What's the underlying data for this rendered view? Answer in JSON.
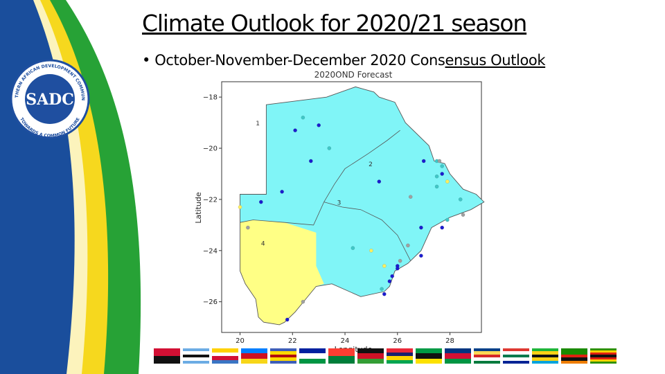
{
  "slide": {
    "title": "Climate Outlook for 2020/21 season",
    "bullet_prefix": "• October-November-December 2020 Cons",
    "bullet_underlined": "ensus Outlook"
  },
  "logo": {
    "text_top": "SOUTHERN AFRICAN DEVELOPMENT COMMUNITY",
    "text_bottom": "TOWARDS A COMMON FUTURE",
    "center": "SADC",
    "color": "#1f4fa0"
  },
  "map": {
    "title": "2020OND Forecast",
    "xlabel": "Longitude",
    "ylabel": "Latitude",
    "xlim": [
      19.3,
      29.2
    ],
    "ylim": [
      -27.2,
      -17.4
    ],
    "xticks": [
      "20",
      "22",
      "24",
      "26",
      "28"
    ],
    "yticks": [
      "−18",
      "−20",
      "−22",
      "−24",
      "−26"
    ],
    "colors": {
      "above": "#80f5f7",
      "below": "#ffff85",
      "border": "#555555"
    },
    "zones": [
      {
        "label": "1",
        "lon": 20.6,
        "lat": -19.1
      },
      {
        "label": "2",
        "lon": 24.9,
        "lat": -20.7
      },
      {
        "label": "3",
        "lon": 23.7,
        "lat": -22.2
      },
      {
        "label": "4",
        "lon": 20.8,
        "lat": -23.8
      }
    ],
    "outline": [
      [
        21.0,
        -18.3
      ],
      [
        23.3,
        -18.0
      ],
      [
        24.4,
        -17.6
      ],
      [
        25.1,
        -17.8
      ],
      [
        25.3,
        -18.0
      ],
      [
        25.9,
        -18.2
      ],
      [
        26.3,
        -19.0
      ],
      [
        27.2,
        -19.9
      ],
      [
        27.4,
        -20.5
      ],
      [
        27.8,
        -20.6
      ],
      [
        28.0,
        -21.0
      ],
      [
        28.5,
        -21.6
      ],
      [
        29.0,
        -21.8
      ],
      [
        29.3,
        -22.1
      ],
      [
        28.8,
        -22.4
      ],
      [
        28.0,
        -22.7
      ],
      [
        27.3,
        -23.1
      ],
      [
        26.9,
        -24.0
      ],
      [
        26.4,
        -24.5
      ],
      [
        25.9,
        -24.8
      ],
      [
        25.7,
        -25.4
      ],
      [
        25.5,
        -25.6
      ],
      [
        24.6,
        -25.8
      ],
      [
        23.5,
        -25.3
      ],
      [
        22.9,
        -25.4
      ],
      [
        22.5,
        -25.9
      ],
      [
        22.1,
        -26.4
      ],
      [
        21.7,
        -26.8
      ],
      [
        21.5,
        -26.9
      ],
      [
        20.9,
        -26.8
      ],
      [
        20.7,
        -26.6
      ],
      [
        20.6,
        -25.9
      ],
      [
        20.2,
        -25.3
      ],
      [
        20.0,
        -24.8
      ],
      [
        20.0,
        -21.8
      ],
      [
        21.0,
        -21.8
      ],
      [
        21.0,
        -18.3
      ]
    ],
    "yellow_region": [
      [
        20.0,
        -22.9
      ],
      [
        20.5,
        -22.8
      ],
      [
        21.7,
        -22.9
      ],
      [
        22.9,
        -23.3
      ],
      [
        22.9,
        -24.6
      ],
      [
        23.2,
        -25.3
      ],
      [
        22.9,
        -25.4
      ],
      [
        22.5,
        -25.9
      ],
      [
        22.1,
        -26.4
      ],
      [
        21.7,
        -26.8
      ],
      [
        21.5,
        -26.9
      ],
      [
        20.9,
        -26.8
      ],
      [
        20.7,
        -26.6
      ],
      [
        20.6,
        -25.9
      ],
      [
        20.2,
        -25.3
      ],
      [
        20.0,
        -24.8
      ]
    ],
    "boundaries": [
      [
        [
          20.0,
          -22.9
        ],
        [
          20.5,
          -22.8
        ],
        [
          21.7,
          -22.9
        ],
        [
          22.8,
          -23.0
        ],
        [
          23.2,
          -22.1
        ],
        [
          23.6,
          -21.4
        ],
        [
          24.0,
          -20.8
        ],
        [
          24.9,
          -20.2
        ],
        [
          25.6,
          -19.7
        ],
        [
          26.1,
          -19.3
        ]
      ],
      [
        [
          23.2,
          -22.1
        ],
        [
          23.9,
          -22.3
        ],
        [
          24.6,
          -22.4
        ],
        [
          25.4,
          -22.8
        ],
        [
          26.0,
          -23.4
        ],
        [
          26.5,
          -24.4
        ]
      ]
    ],
    "stations": [
      {
        "lon": 22.4,
        "lat": -18.8,
        "c": "#41c7c7"
      },
      {
        "lon": 22.1,
        "lat": -19.3,
        "c": "#1c1ccf"
      },
      {
        "lon": 23.0,
        "lat": -19.1,
        "c": "#1c1ccf"
      },
      {
        "lon": 23.4,
        "lat": -20.0,
        "c": "#41c7c7"
      },
      {
        "lon": 22.7,
        "lat": -20.5,
        "c": "#1c1ccf"
      },
      {
        "lon": 21.6,
        "lat": -21.7,
        "c": "#1c1ccf"
      },
      {
        "lon": 20.8,
        "lat": -22.1,
        "c": "#1c1ccf"
      },
      {
        "lon": 20.0,
        "lat": -22.3,
        "c": "#ffef60"
      },
      {
        "lon": 20.3,
        "lat": -23.1,
        "c": "#a0a0a0"
      },
      {
        "lon": 25.3,
        "lat": -21.3,
        "c": "#1c1ccf"
      },
      {
        "lon": 27.0,
        "lat": -20.5,
        "c": "#1c1ccf"
      },
      {
        "lon": 27.5,
        "lat": -20.5,
        "c": "#41c7c7"
      },
      {
        "lon": 27.6,
        "lat": -20.5,
        "c": "#a0a0a0"
      },
      {
        "lon": 27.7,
        "lat": -20.7,
        "c": "#41c7c7"
      },
      {
        "lon": 27.7,
        "lat": -21.0,
        "c": "#1c1ccf"
      },
      {
        "lon": 27.5,
        "lat": -21.1,
        "c": "#41c7c7"
      },
      {
        "lon": 27.9,
        "lat": -21.3,
        "c": "#ffef60"
      },
      {
        "lon": 27.5,
        "lat": -21.5,
        "c": "#41c7c7"
      },
      {
        "lon": 26.5,
        "lat": -21.9,
        "c": "#a0a0a0"
      },
      {
        "lon": 28.4,
        "lat": -22.0,
        "c": "#41c7c7"
      },
      {
        "lon": 28.5,
        "lat": -22.6,
        "c": "#a0a0a0"
      },
      {
        "lon": 27.9,
        "lat": -22.8,
        "c": "#41c7c7"
      },
      {
        "lon": 27.7,
        "lat": -23.1,
        "c": "#1c1ccf"
      },
      {
        "lon": 26.9,
        "lat": -23.1,
        "c": "#1c1ccf"
      },
      {
        "lon": 24.3,
        "lat": -23.9,
        "c": "#41c7c7"
      },
      {
        "lon": 25.0,
        "lat": -24.0,
        "c": "#ffef60"
      },
      {
        "lon": 26.4,
        "lat": -23.8,
        "c": "#a0a0a0"
      },
      {
        "lon": 26.9,
        "lat": -24.2,
        "c": "#1c1ccf"
      },
      {
        "lon": 26.1,
        "lat": -24.4,
        "c": "#a0a0a0"
      },
      {
        "lon": 25.5,
        "lat": -24.6,
        "c": "#ffef60"
      },
      {
        "lon": 26.0,
        "lat": -24.6,
        "c": "#1c1ccf"
      },
      {
        "lon": 26.0,
        "lat": -24.7,
        "c": "#1c1ccf"
      },
      {
        "lon": 25.8,
        "lat": -25.0,
        "c": "#1c1ccf"
      },
      {
        "lon": 25.7,
        "lat": -25.2,
        "c": "#1c1ccf"
      },
      {
        "lon": 25.4,
        "lat": -25.5,
        "c": "#41c7c7"
      },
      {
        "lon": 25.5,
        "lat": -25.7,
        "c": "#1c1ccf"
      },
      {
        "lon": 22.4,
        "lat": -26.0,
        "c": "#a0a0a0"
      },
      {
        "lon": 21.8,
        "lat": -26.7,
        "c": "#1c1ccf"
      }
    ]
  },
  "flags": [
    {
      "name": "angola-flag",
      "colors": [
        "#d21034",
        "#111111"
      ]
    },
    {
      "name": "botswana-flag",
      "colors": [
        "#6cace4",
        "#ffffff",
        "#111111",
        "#ffffff",
        "#6cace4"
      ]
    },
    {
      "name": "comoros-flag",
      "colors": [
        "#ffd100",
        "#ffffff",
        "#d21034",
        "#3a75c4"
      ]
    },
    {
      "name": "drc-flag",
      "colors": [
        "#007fff",
        "#ce1021",
        "#f7d618"
      ]
    },
    {
      "name": "eswatini-flag",
      "colors": [
        "#3e5eb9",
        "#ffd900",
        "#b10c0c",
        "#ffd900",
        "#3e5eb9"
      ]
    },
    {
      "name": "lesotho-flag",
      "colors": [
        "#00209f",
        "#ffffff",
        "#009543"
      ]
    },
    {
      "name": "madagascar-flag",
      "colors": [
        "#fc3d32",
        "#007e3a"
      ]
    },
    {
      "name": "malawi-flag",
      "colors": [
        "#111111",
        "#ce1126",
        "#339e35"
      ]
    },
    {
      "name": "mauritius-flag",
      "colors": [
        "#ea2839",
        "#1a206d",
        "#ffd500",
        "#00a551"
      ]
    },
    {
      "name": "mozambique-flag",
      "colors": [
        "#009a44",
        "#111111",
        "#fce100"
      ]
    },
    {
      "name": "namibia-flag",
      "colors": [
        "#003580",
        "#d21034",
        "#009543"
      ]
    },
    {
      "name": "seychelles-flag",
      "colors": [
        "#003f87",
        "#fcd856",
        "#d62828",
        "#ffffff",
        "#007a3d"
      ]
    },
    {
      "name": "south-africa-flag",
      "colors": [
        "#de3831",
        "#ffffff",
        "#007a4d",
        "#ffffff",
        "#002395"
      ]
    },
    {
      "name": "tanzania-flag",
      "colors": [
        "#1eb53a",
        "#fcd116",
        "#111111",
        "#fcd116",
        "#00a3dd"
      ]
    },
    {
      "name": "zambia-flag",
      "colors": [
        "#198a00",
        "#198a00",
        "#de2010",
        "#111111",
        "#ef7d00"
      ]
    },
    {
      "name": "zimbabwe-flag",
      "colors": [
        "#319208",
        "#ffd200",
        "#de2010",
        "#111111",
        "#de2010",
        "#ffd200",
        "#319208"
      ]
    }
  ]
}
